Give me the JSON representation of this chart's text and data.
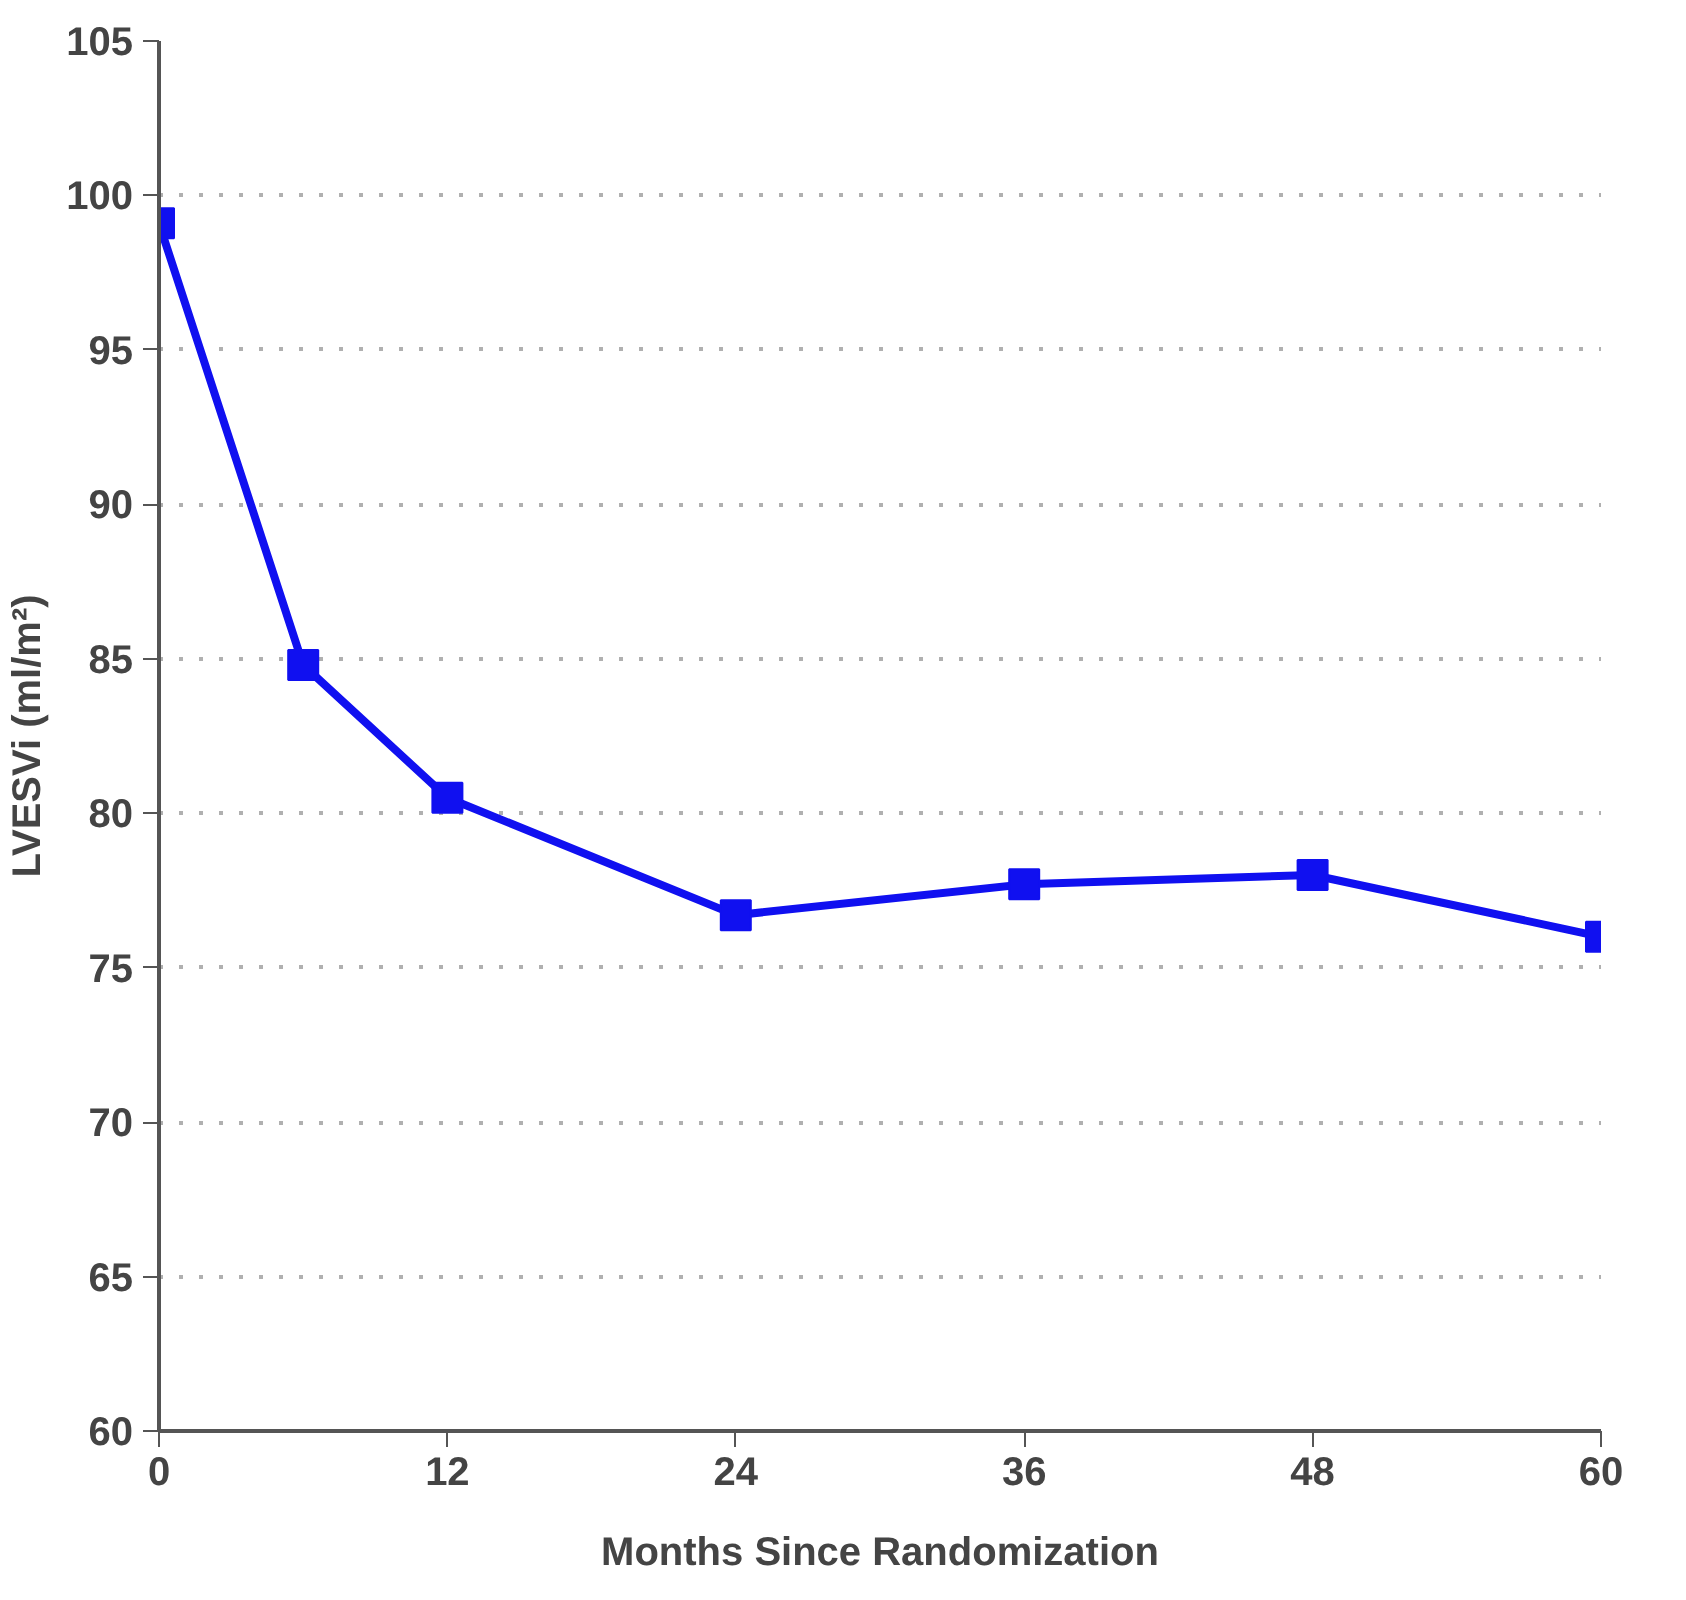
{
  "chart_data": {
    "type": "line",
    "xlabel": "Months Since Randomization",
    "ylabel": "LVESVi (ml/m²)",
    "x": [
      0,
      6,
      12,
      24,
      36,
      48,
      60
    ],
    "series": [
      {
        "color": "#1010f0",
        "values": [
          99.1,
          84.8,
          80.5,
          76.7,
          77.7,
          78.0,
          76.0
        ]
      }
    ],
    "xlim": [
      0,
      60
    ],
    "xticks": [
      0,
      12,
      24,
      36,
      48,
      60
    ],
    "ylim": [
      60,
      105
    ],
    "yticks": [
      60,
      65,
      70,
      75,
      80,
      85,
      90,
      95,
      100,
      105
    ],
    "grid": "y",
    "marker": "square",
    "line_style": "solid"
  }
}
